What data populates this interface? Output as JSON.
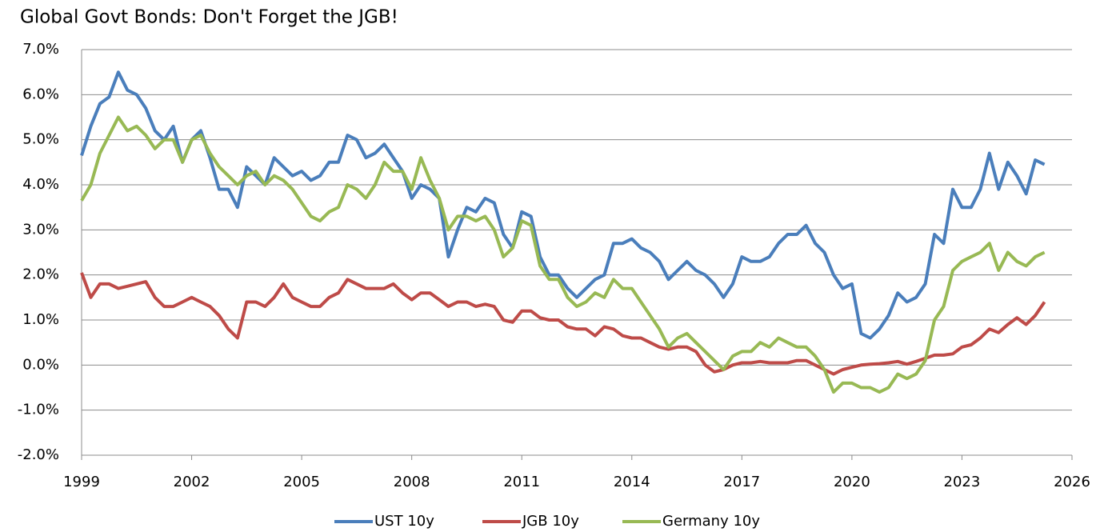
{
  "chart_data": {
    "type": "line",
    "title": "Global Govt Bonds: Don't Forget the JGB!",
    "x": [
      1999,
      1999.25,
      1999.5,
      1999.75,
      2000,
      2000.25,
      2000.5,
      2000.75,
      2001,
      2001.25,
      2001.5,
      2001.75,
      2002,
      2002.25,
      2002.5,
      2002.75,
      2003,
      2003.25,
      2003.5,
      2003.75,
      2004,
      2004.25,
      2004.5,
      2004.75,
      2005,
      2005.25,
      2005.5,
      2005.75,
      2006,
      2006.25,
      2006.5,
      2006.75,
      2007,
      2007.25,
      2007.5,
      2007.75,
      2008,
      2008.25,
      2008.5,
      2008.75,
      2009,
      2009.25,
      2009.5,
      2009.75,
      2010,
      2010.25,
      2010.5,
      2010.75,
      2011,
      2011.25,
      2011.5,
      2011.75,
      2012,
      2012.25,
      2012.5,
      2012.75,
      2013,
      2013.25,
      2013.5,
      2013.75,
      2014,
      2014.25,
      2014.5,
      2014.75,
      2015,
      2015.25,
      2015.5,
      2015.75,
      2016,
      2016.25,
      2016.5,
      2016.75,
      2017,
      2017.25,
      2017.5,
      2017.75,
      2018,
      2018.25,
      2018.5,
      2018.75,
      2019,
      2019.25,
      2019.5,
      2019.75,
      2020,
      2020.25,
      2020.5,
      2020.75,
      2021,
      2021.25,
      2021.5,
      2021.75,
      2022,
      2022.25,
      2022.5,
      2022.75,
      2023,
      2023.25,
      2023.5,
      2023.75,
      2024,
      2024.25,
      2024.5,
      2024.75,
      2025,
      2025.25
    ],
    "series": [
      {
        "name": "UST 10y",
        "color": "#4a7ebb",
        "values": [
          4.65,
          5.3,
          5.8,
          5.95,
          6.5,
          6.1,
          6.0,
          5.7,
          5.2,
          5.0,
          5.3,
          4.5,
          5.0,
          5.2,
          4.6,
          3.9,
          3.9,
          3.5,
          4.4,
          4.2,
          4.0,
          4.6,
          4.4,
          4.2,
          4.3,
          4.1,
          4.2,
          4.5,
          4.5,
          5.1,
          5.0,
          4.6,
          4.7,
          4.9,
          4.6,
          4.3,
          3.7,
          4.0,
          3.9,
          3.7,
          2.4,
          3.0,
          3.5,
          3.4,
          3.7,
          3.6,
          2.9,
          2.6,
          3.4,
          3.3,
          2.4,
          2.0,
          2.0,
          1.7,
          1.5,
          1.7,
          1.9,
          2.0,
          2.7,
          2.7,
          2.8,
          2.6,
          2.5,
          2.3,
          1.9,
          2.1,
          2.3,
          2.1,
          2.0,
          1.8,
          1.5,
          1.8,
          2.4,
          2.3,
          2.3,
          2.4,
          2.7,
          2.9,
          2.9,
          3.1,
          2.7,
          2.5,
          2.0,
          1.7,
          1.8,
          0.7,
          0.6,
          0.8,
          1.1,
          1.6,
          1.4,
          1.5,
          1.8,
          2.9,
          2.7,
          3.9,
          3.5,
          3.5,
          3.9,
          4.7,
          3.9,
          4.5,
          4.2,
          3.8,
          4.55,
          4.45
        ]
      },
      {
        "name": "JGB 10y",
        "color": "#be4b48",
        "values": [
          2.05,
          1.5,
          1.8,
          1.8,
          1.7,
          1.75,
          1.8,
          1.85,
          1.5,
          1.3,
          1.3,
          1.4,
          1.5,
          1.4,
          1.3,
          1.1,
          0.8,
          0.6,
          1.4,
          1.4,
          1.3,
          1.5,
          1.8,
          1.5,
          1.4,
          1.3,
          1.3,
          1.5,
          1.6,
          1.9,
          1.8,
          1.7,
          1.7,
          1.7,
          1.8,
          1.6,
          1.45,
          1.6,
          1.6,
          1.45,
          1.3,
          1.4,
          1.4,
          1.3,
          1.35,
          1.3,
          1.0,
          0.95,
          1.2,
          1.2,
          1.05,
          1.0,
          1.0,
          0.85,
          0.8,
          0.8,
          0.65,
          0.85,
          0.8,
          0.65,
          0.6,
          0.6,
          0.5,
          0.4,
          0.35,
          0.4,
          0.4,
          0.3,
          0.0,
          -0.15,
          -0.1,
          0.0,
          0.05,
          0.05,
          0.08,
          0.05,
          0.05,
          0.05,
          0.1,
          0.1,
          0.0,
          -0.1,
          -0.2,
          -0.1,
          -0.05,
          0.0,
          0.02,
          0.03,
          0.05,
          0.08,
          0.02,
          0.08,
          0.15,
          0.22,
          0.22,
          0.25,
          0.4,
          0.45,
          0.6,
          0.8,
          0.72,
          0.9,
          1.05,
          0.9,
          1.1,
          1.4
        ]
      },
      {
        "name": "Germany 10y",
        "color": "#98b954",
        "values": [
          3.65,
          4.0,
          4.7,
          5.1,
          5.5,
          5.2,
          5.3,
          5.1,
          4.8,
          5.0,
          5.0,
          4.5,
          5.0,
          5.1,
          4.7,
          4.4,
          4.2,
          4.0,
          4.2,
          4.3,
          4.0,
          4.2,
          4.1,
          3.9,
          3.6,
          3.3,
          3.2,
          3.4,
          3.5,
          4.0,
          3.9,
          3.7,
          4.0,
          4.5,
          4.3,
          4.3,
          3.9,
          4.6,
          4.1,
          3.7,
          3.0,
          3.3,
          3.3,
          3.2,
          3.3,
          3.0,
          2.4,
          2.6,
          3.2,
          3.1,
          2.2,
          1.9,
          1.9,
          1.5,
          1.3,
          1.4,
          1.6,
          1.5,
          1.9,
          1.7,
          1.7,
          1.4,
          1.1,
          0.8,
          0.4,
          0.6,
          0.7,
          0.5,
          0.3,
          0.1,
          -0.1,
          0.2,
          0.3,
          0.3,
          0.5,
          0.4,
          0.6,
          0.5,
          0.4,
          0.4,
          0.2,
          -0.1,
          -0.6,
          -0.4,
          -0.4,
          -0.5,
          -0.5,
          -0.6,
          -0.5,
          -0.2,
          -0.3,
          -0.2,
          0.1,
          1.0,
          1.3,
          2.1,
          2.3,
          2.4,
          2.5,
          2.7,
          2.1,
          2.5,
          2.3,
          2.2,
          2.4,
          2.5
        ]
      }
    ],
    "xlim": [
      1999,
      2026
    ],
    "xticks": [
      1999,
      2002,
      2005,
      2008,
      2011,
      2014,
      2017,
      2020,
      2023,
      2026
    ],
    "ylim": [
      -2,
      7
    ],
    "yticks": [
      {
        "value": -2,
        "label": "-2.0%"
      },
      {
        "value": -1,
        "label": "-1.0%"
      },
      {
        "value": 0,
        "label": "0.0%"
      },
      {
        "value": 1,
        "label": "1.0%"
      },
      {
        "value": 2,
        "label": "2.0%"
      },
      {
        "value": 3,
        "label": "3.0%"
      },
      {
        "value": 4,
        "label": "4.0%"
      },
      {
        "value": 5,
        "label": "5.0%"
      },
      {
        "value": 6,
        "label": "6.0%"
      },
      {
        "value": 7,
        "label": "7.0%"
      }
    ],
    "grid": true,
    "legend": "bottom"
  }
}
